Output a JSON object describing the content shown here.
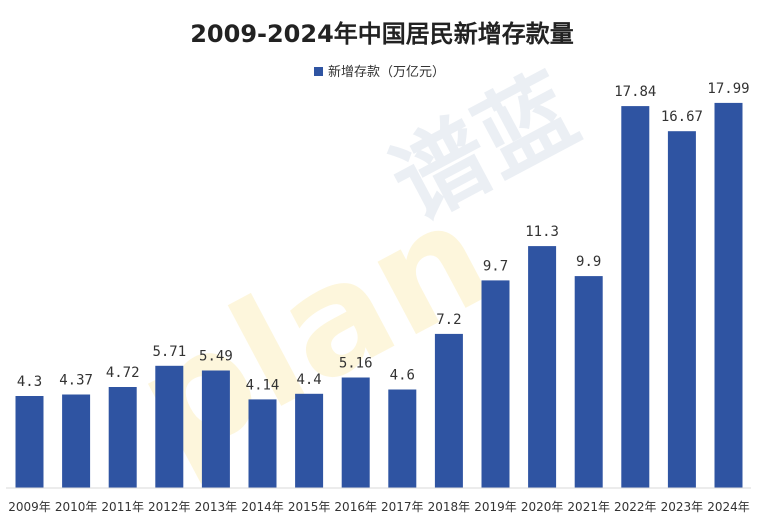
{
  "chart_data": {
    "type": "bar",
    "title": "2009-2024年中国居民新增存款量",
    "categories": [
      "2009年",
      "2010年",
      "2011年",
      "2012年",
      "2013年",
      "2014年",
      "2015年",
      "2016年",
      "2017年",
      "2018年",
      "2019年",
      "2020年",
      "2021年",
      "2022年",
      "2023年",
      "2024年"
    ],
    "series": [
      {
        "name": "新增存款（万亿元）",
        "values": [
          4.3,
          4.37,
          4.72,
          5.71,
          5.49,
          4.14,
          4.4,
          5.16,
          4.6,
          7.2,
          9.7,
          11.3,
          9.9,
          17.84,
          16.67,
          17.99
        ],
        "value_labels": [
          "4.3",
          "4.37",
          "4.72",
          "5.71",
          "5.49",
          "4.14",
          "4.4",
          "5.16",
          "4.6",
          "7.2",
          "9.7",
          "11.3",
          "9.9",
          "17.84",
          "16.67",
          "17.99"
        ],
        "color": "#2F54A2"
      }
    ],
    "ylim": [
      0,
      19.2
    ],
    "grid": false,
    "legend": "top-center"
  },
  "watermark": {
    "latin": "plan",
    "cjk": "谱蓝"
  }
}
